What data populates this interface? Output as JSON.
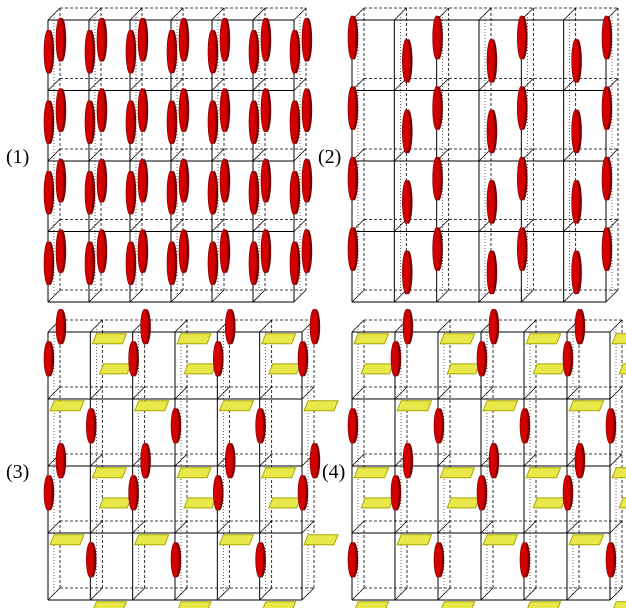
{
  "figure": {
    "panels": [
      {
        "label": "(1)",
        "pattern": "vertical-lattice-dense"
      },
      {
        "label": "(2)",
        "pattern": "vertical-lattice-staggered"
      },
      {
        "label": "(3)",
        "pattern": "mixed-vertical-horizontal-a"
      },
      {
        "label": "(4)",
        "pattern": "mixed-vertical-horizontal-b"
      }
    ],
    "colors": {
      "vertical_particle": "#d40000",
      "vertical_particle_dark": "#7a0000",
      "horizontal_particle": "#e8e84a",
      "horizontal_particle_edge": "#a8a800",
      "grid_line": "#000000"
    },
    "grid": {
      "columns": 6,
      "rows": 4,
      "depth_layers": 2
    }
  }
}
